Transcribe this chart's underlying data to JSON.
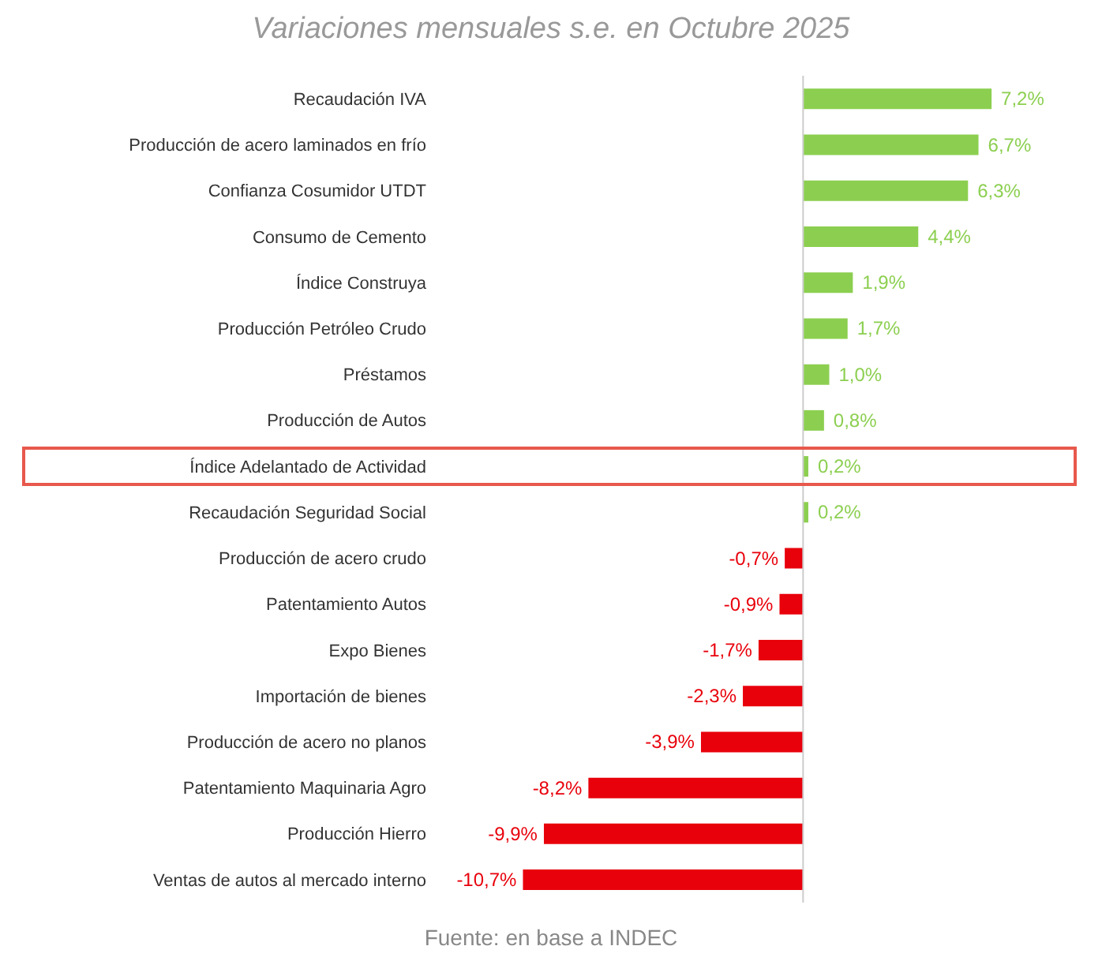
{
  "chart_data": {
    "type": "bar",
    "orientation": "horizontal",
    "title": "Variaciones mensuales s.e. en Octubre 2025",
    "categories": [
      "Recaudación IVA",
      "Producción de acero laminados en frío",
      "Confianza Cosumidor UTDT",
      "Consumo de Cemento",
      "Índice Construya",
      "Producción Petróleo Crudo",
      "Préstamos",
      "Producción de Autos",
      "Índice Adelantado de Actividad",
      "Recaudación Seguridad Social",
      "Producción de acero crudo",
      "Patentamiento Autos",
      "Expo Bienes",
      "Importación de bienes",
      "Producción de acero no planos",
      "Patentamiento Maquinaria Agro",
      "Producción Hierro",
      "Ventas de autos al mercado interno"
    ],
    "values": [
      7.2,
      6.7,
      6.3,
      4.4,
      1.9,
      1.7,
      1.0,
      0.8,
      0.2,
      0.2,
      -0.7,
      -0.9,
      -1.7,
      -2.3,
      -3.9,
      -8.2,
      -9.9,
      -10.7
    ],
    "value_labels": [
      "7,2%",
      "6,7%",
      "6,3%",
      "4,4%",
      "1,9%",
      "1,7%",
      "1,0%",
      "0,8%",
      "0,2%",
      "0,2%",
      "-0,7%",
      "-0,9%",
      "-1,7%",
      "-2,3%",
      "-3,9%",
      "-8,2%",
      "-9,9%",
      "-10,7%"
    ],
    "colors": [
      "#8ccf50",
      "#8ccf50",
      "#8ccf50",
      "#8ccf50",
      "#8ccf50",
      "#8ccf50",
      "#8ccf50",
      "#8ccf50",
      "#8ccf50",
      "#8ccf50",
      "#e8000b",
      "#e8000b",
      "#e8000b",
      "#e8000b",
      "#e8000b",
      "#e8000b",
      "#e8000b",
      "#e8000b"
    ],
    "tick_labels": "y",
    "annotations": [
      "Fuente: en base a INDEC"
    ]
  }
}
